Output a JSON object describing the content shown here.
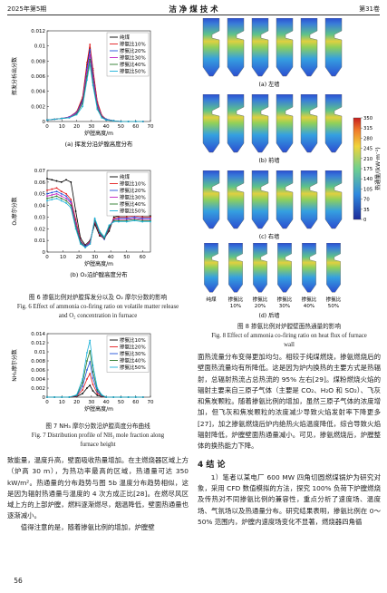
{
  "header": {
    "left": "2025年第5期",
    "center": "洁 净 煤 技 术",
    "right": "第31卷"
  },
  "chart_data": [
    {
      "type": "line",
      "y_label": "挥发分析出分数",
      "x_label": "炉膛高度/m",
      "caption": "(a) 挥发分沿炉膛高度分布",
      "xlim": [
        0,
        70
      ],
      "xticks": [
        0,
        10,
        20,
        30,
        40,
        50,
        60,
        70
      ],
      "ylim": [
        0,
        0.012
      ],
      "yticks": [
        0,
        0.002,
        0.004,
        0.006,
        0.008,
        0.01,
        0.012
      ],
      "legend": "upper-right",
      "x": [
        0,
        5,
        10,
        15,
        20,
        24,
        27,
        29,
        31,
        34,
        37,
        40,
        45,
        50,
        55,
        60,
        65
      ],
      "series": [
        {
          "name": "纯煤",
          "color": "#000000",
          "values": [
            0.0002,
            0.0003,
            0.0004,
            0.0006,
            0.0012,
            0.003,
            0.0075,
            0.0098,
            0.0068,
            0.0025,
            0.0008,
            0.0003,
            0.0001,
            0,
            0,
            0,
            0
          ]
        },
        {
          "name": "掺氨比10%",
          "color": "#e41a1c",
          "values": [
            0.0002,
            0.0003,
            0.0004,
            0.0006,
            0.0013,
            0.0032,
            0.0078,
            0.0102,
            0.007,
            0.0026,
            0.0008,
            0.0003,
            0.0001,
            0,
            0,
            0,
            0
          ]
        },
        {
          "name": "掺氨比20%",
          "color": "#1f4fd8",
          "values": [
            0.0002,
            0.0003,
            0.0004,
            0.0006,
            0.0012,
            0.0028,
            0.007,
            0.0095,
            0.0062,
            0.0022,
            0.0007,
            0.0003,
            0.0001,
            0,
            0,
            0,
            0
          ]
        },
        {
          "name": "掺氨比30%",
          "color": "#c020c0",
          "values": [
            0.0002,
            0.0003,
            0.0004,
            0.0006,
            0.0011,
            0.0026,
            0.0066,
            0.0088,
            0.0058,
            0.002,
            0.0007,
            0.0002,
            0.0001,
            0,
            0,
            0,
            0
          ]
        },
        {
          "name": "掺氨比40%",
          "color": "#2a7a2a",
          "values": [
            0.0002,
            0.0003,
            0.0004,
            0.0005,
            0.001,
            0.0024,
            0.006,
            0.0082,
            0.0052,
            0.0018,
            0.0006,
            0.0002,
            0.0001,
            0,
            0,
            0,
            0
          ]
        },
        {
          "name": "掺氨比50%",
          "color": "#18b0d8",
          "values": [
            0.0002,
            0.0003,
            0.0004,
            0.0005,
            0.0009,
            0.002,
            0.0055,
            0.0076,
            0.0048,
            0.0016,
            0.0005,
            0.0002,
            0.0001,
            0,
            0,
            0,
            0
          ]
        }
      ]
    },
    {
      "type": "line",
      "y_label": "O₂摩尔分数",
      "x_label": "炉膛高度/m",
      "caption": "(b) O₂沿炉膛高度分布",
      "xlim": [
        0,
        65
      ],
      "xticks": [
        0,
        10,
        20,
        30,
        40,
        50,
        60
      ],
      "ylim": [
        0,
        0.07
      ],
      "yticks": [
        0,
        0.01,
        0.02,
        0.03,
        0.04,
        0.05,
        0.06,
        0.07
      ],
      "legend": "upper-right",
      "x": [
        0,
        3,
        6,
        9,
        12,
        15,
        18,
        21,
        24,
        27,
        30,
        33,
        36,
        39,
        42,
        45,
        50,
        55,
        60,
        65
      ],
      "series": [
        {
          "name": "纯煤",
          "color": "#000000",
          "values": [
            0.063,
            0.062,
            0.061,
            0.06,
            0.062,
            0.06,
            0.035,
            0.012,
            0.006,
            0.01,
            0.024,
            0.014,
            0.012,
            0.018,
            0.03,
            0.031,
            0.031,
            0.032,
            0.031,
            0.031
          ]
        },
        {
          "name": "掺氨比10%",
          "color": "#e41a1c",
          "values": [
            0.053,
            0.054,
            0.055,
            0.052,
            0.05,
            0.045,
            0.028,
            0.01,
            0.005,
            0.009,
            0.026,
            0.015,
            0.011,
            0.02,
            0.029,
            0.03,
            0.03,
            0.031,
            0.03,
            0.03
          ]
        },
        {
          "name": "掺氨比20%",
          "color": "#1f4fd8",
          "values": [
            0.05,
            0.051,
            0.052,
            0.05,
            0.048,
            0.043,
            0.025,
            0.009,
            0.005,
            0.008,
            0.027,
            0.016,
            0.011,
            0.021,
            0.028,
            0.029,
            0.029,
            0.03,
            0.029,
            0.029
          ]
        },
        {
          "name": "掺氨比30%",
          "color": "#c020c0",
          "values": [
            0.048,
            0.049,
            0.05,
            0.048,
            0.046,
            0.042,
            0.024,
            0.008,
            0.004,
            0.008,
            0.028,
            0.017,
            0.012,
            0.022,
            0.028,
            0.028,
            0.028,
            0.029,
            0.028,
            0.028
          ]
        },
        {
          "name": "掺氨比40%",
          "color": "#2a7a2a",
          "values": [
            0.046,
            0.047,
            0.048,
            0.046,
            0.044,
            0.04,
            0.022,
            0.008,
            0.004,
            0.007,
            0.028,
            0.017,
            0.012,
            0.022,
            0.027,
            0.027,
            0.027,
            0.028,
            0.027,
            0.027
          ]
        },
        {
          "name": "掺氨比50%",
          "color": "#18b0d8",
          "values": [
            0.044,
            0.045,
            0.046,
            0.044,
            0.042,
            0.038,
            0.02,
            0.007,
            0.004,
            0.007,
            0.029,
            0.018,
            0.013,
            0.023,
            0.026,
            0.026,
            0.026,
            0.027,
            0.026,
            0.026
          ]
        }
      ]
    },
    {
      "type": "line",
      "y_label": "NH₃摩尔分数",
      "x_label": "炉膛高度/m",
      "xlim": [
        0,
        70
      ],
      "xticks": [
        0,
        10,
        20,
        30,
        40,
        50,
        60,
        70
      ],
      "ylim": [
        0,
        0.014
      ],
      "yticks": [
        0,
        0.002,
        0.004,
        0.006,
        0.008,
        0.01,
        0.012,
        0.014
      ],
      "legend": "upper-right",
      "x": [
        0,
        5,
        10,
        15,
        20,
        24,
        27,
        29,
        31,
        34,
        37,
        40,
        45,
        50,
        55,
        60,
        65
      ],
      "series": [
        {
          "name": "掺氨比10%",
          "color": "#000000",
          "values": [
            0,
            0,
            0,
            0,
            0.0001,
            0.0008,
            0.002,
            0.0026,
            0.0014,
            0.0004,
            0.0001,
            0,
            0,
            0,
            0,
            0,
            0
          ]
        },
        {
          "name": "掺氨比20%",
          "color": "#e41a1c",
          "values": [
            0,
            0,
            0,
            0,
            0.0002,
            0.0016,
            0.004,
            0.0052,
            0.0028,
            0.0008,
            0.0002,
            0,
            0,
            0,
            0,
            0,
            0
          ]
        },
        {
          "name": "掺氨比30%",
          "color": "#1f4fd8",
          "values": [
            0,
            0,
            0,
            0,
            0.0003,
            0.0024,
            0.006,
            0.0078,
            0.0042,
            0.0012,
            0.0003,
            0,
            0,
            0,
            0,
            0,
            0
          ]
        },
        {
          "name": "掺氨比40%",
          "color": "#2a7a2a",
          "values": [
            0,
            0,
            0,
            0,
            0.0004,
            0.0032,
            0.008,
            0.0102,
            0.0056,
            0.0016,
            0.0004,
            0,
            0,
            0,
            0,
            0,
            0
          ]
        },
        {
          "name": "掺氨比50%",
          "color": "#18b0d8",
          "values": [
            0,
            0,
            0,
            0,
            0.0005,
            0.004,
            0.0098,
            0.0125,
            0.007,
            0.002,
            0.0005,
            0,
            0,
            0,
            0,
            0,
            0
          ]
        }
      ]
    }
  ],
  "fig6_caption_cn": "图 6  掺氨比例对炉膛挥发分以及 O₂ 摩尔分数的影响",
  "fig6_caption_en": "Fig. 6  Effect of ammonia co-firing ratio on volatile matter release and O₂ concentration in furnace",
  "fig7_caption_cn": "图 7  NH₃ 摩尔分数沿炉膛高度分布曲线",
  "fig7_caption_en": "Fig. 7  Distribution profile of NH₃ mole fraction along furnace height",
  "figure_8": {
    "panels": [
      "(a) 左墙",
      "(b) 前墙",
      "(c) 右墙",
      "(d) 后墙"
    ],
    "columns": [
      [
        "纯煤"
      ],
      [
        "掺氨比",
        "10%"
      ],
      [
        "掺氨比",
        "20%"
      ],
      [
        "掺氨比",
        "30%"
      ],
      [
        "掺氨比",
        "40%"
      ],
      [
        "掺氨比",
        "50%"
      ]
    ],
    "colorbar_label": "热通量/(kW·m⁻²)",
    "colorbar_lim": [
      0,
      350
    ],
    "colorbar_ticks": [
      0,
      35,
      70,
      105,
      140,
      175,
      210,
      245,
      280,
      315,
      350
    ],
    "caption_cn": "图 8  掺氨比例对炉膛壁面热通量的影响",
    "caption_en": "Fig. 8  Effect of ammonia co-firing ratio on heat flux of furnace wall"
  },
  "body": {
    "left": "致能量，温度升高，壁面吸收热量增加。在主燃烧器区域上方（炉高 30 m），为热功率最高的区域，热通量可达 350 kW/m²。热通量的分布趋势与图 5b 温度分布趋势相似，这是因为辐射热通量与温度的 4 次方成正比[28]。在燃尽风区域上方的上部炉膛，燃料逐渐燃尽，烟温降低，壁面热通量也逐渐减小。",
    "left_2": "值得注意的是，随着掺氨比例的增加，炉膛壁",
    "right": "面热流量分布变得更加均匀。相较于纯煤燃烧，掺氨燃烧后的壁面热流量均有所降低。这是因为炉内换热的主要方式是热辐射，总辐射热流占总热流的 95% 左右[29]。煤粉燃烧火焰的辐射主要来自三原子气体（主要是 CO₂、H₂O 和 SO₂）、飞灰和焦炭颗粒。随着掺氨比例的增加，虽然三原子气体的浓度增加，但飞灰和焦炭颗粒的浓度减少导致火焰发射率下降更多[27]，加之掺氨燃烧后炉内绝热火焰温度降低，综合导致火焰辐射降低，炉膛壁面热通量减小。可见，掺氨燃烧后，炉膛整体的换热能力下降。",
    "section": "4  结  论",
    "conclusion": "1）笔者以某电厂 600 MW 四角切圆燃煤锅炉为研究对象，采用 CFD 数值模拟的方法，探究 100% 负荷下炉膛燃烧及传热对不同掺氨比例的兼容性，重点分析了速度场、温度场、气氛场以及热通量分布。研究结果表明，掺氨比例在 0～50% 范围内，炉膛内速度场变化不显著，燃烧器四角循"
  },
  "footer": {
    "page": "56"
  }
}
